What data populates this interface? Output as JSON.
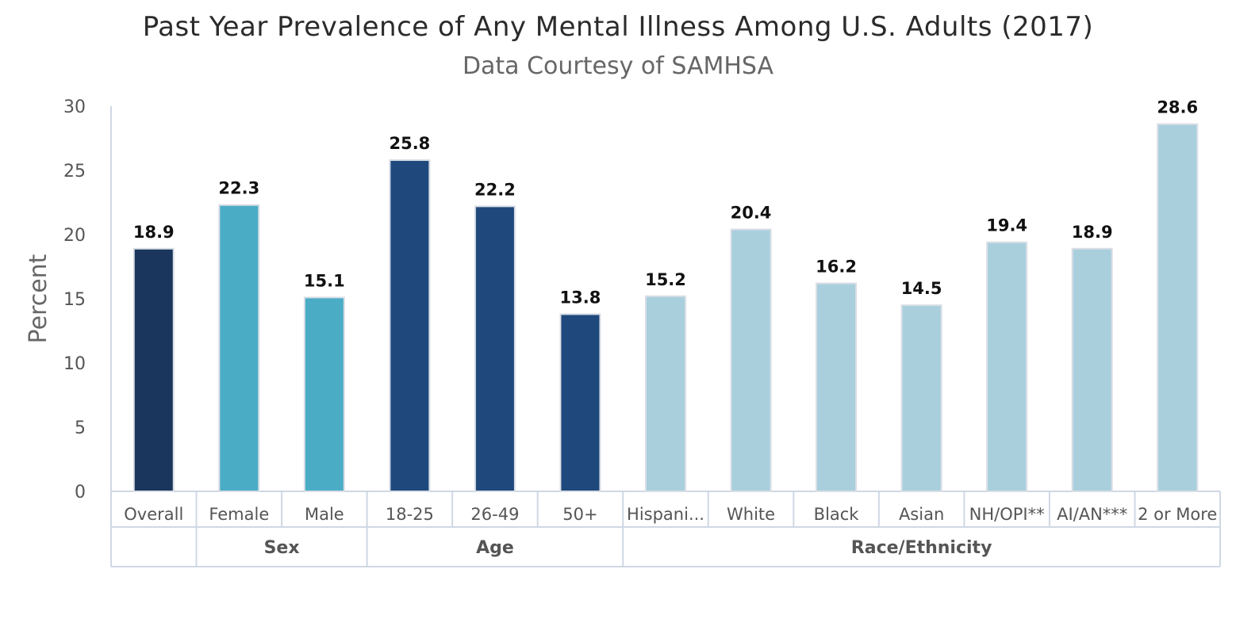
{
  "chart_data": {
    "type": "bar",
    "title": "Past Year Prevalence of Any Mental Illness Among U.S. Adults (2017)",
    "subtitle": "Data Courtesy of SAMHSA",
    "ylabel": "Percent",
    "xlabel": "",
    "ylim": [
      0,
      30
    ],
    "yticks": [
      0,
      5,
      10,
      15,
      20,
      25,
      30
    ],
    "grid": false,
    "categories": [
      "Overall",
      "Female",
      "Male",
      "18-25",
      "26-49",
      "50+",
      "Hispani...",
      "White",
      "Black",
      "Asian",
      "NH/OPI**",
      "AI/AN***",
      "2 or More"
    ],
    "values": [
      18.9,
      22.3,
      15.1,
      25.8,
      22.2,
      13.8,
      15.2,
      20.4,
      16.2,
      14.5,
      19.4,
      18.9,
      28.6
    ],
    "data_labels": [
      "18.9",
      "22.3",
      "15.1",
      "25.8",
      "22.2",
      "13.8",
      "15.2",
      "20.4",
      "16.2",
      "14.5",
      "19.4",
      "18.9",
      ""
    ],
    "groups": [
      {
        "label": "",
        "start": 0,
        "end": 0,
        "color": "#1b365d"
      },
      {
        "label": "Sex",
        "start": 1,
        "end": 2,
        "color": "#4bacc6"
      },
      {
        "label": "Age",
        "start": 3,
        "end": 5,
        "color": "#1f497d"
      },
      {
        "label": "Race/Ethnicity",
        "start": 6,
        "end": 12,
        "color": "#a9cfdd"
      }
    ]
  }
}
